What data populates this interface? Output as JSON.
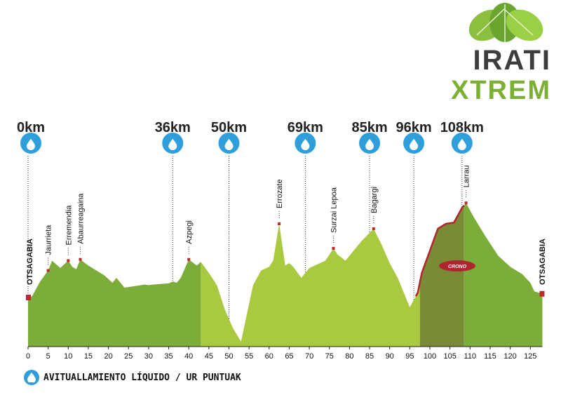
{
  "logo": {
    "line1": "IRATI",
    "line2": "XTREM"
  },
  "chart_data": {
    "type": "area",
    "title": "",
    "xlabel": "",
    "ylabel": "",
    "xlim": [
      0,
      128
    ],
    "xticks": [
      0,
      5,
      10,
      15,
      20,
      25,
      30,
      35,
      40,
      45,
      50,
      55,
      60,
      65,
      70,
      75,
      80,
      85,
      90,
      95,
      100,
      105,
      110,
      115,
      120,
      125
    ],
    "profile_x": [
      0,
      1,
      3,
      5,
      6,
      8,
      10,
      11,
      12,
      13,
      15,
      17,
      19,
      21,
      22,
      24,
      26,
      28,
      29,
      30,
      31,
      33,
      35,
      36,
      37,
      38,
      40,
      42,
      43,
      45,
      47,
      49,
      51,
      53,
      56,
      58,
      60,
      61,
      62.5,
      64,
      65,
      66,
      68,
      70,
      72,
      74,
      76,
      77,
      79,
      81,
      83,
      86,
      88,
      90,
      92,
      95,
      97,
      98,
      102,
      104,
      106,
      108,
      109,
      111,
      114,
      117,
      120,
      123,
      125,
      126,
      128
    ],
    "profile_y": [
      400,
      410,
      530,
      620,
      700,
      640,
      700,
      650,
      630,
      710,
      660,
      620,
      580,
      520,
      560,
      480,
      490,
      500,
      505,
      500,
      505,
      510,
      515,
      530,
      520,
      560,
      710,
      660,
      690,
      600,
      500,
      300,
      150,
      40,
      500,
      620,
      650,
      700,
      1000,
      660,
      680,
      650,
      560,
      640,
      670,
      700,
      800,
      750,
      700,
      780,
      860,
      960,
      830,
      680,
      560,
      320,
      440,
      600,
      960,
      1000,
      1010,
      1130,
      1170,
      1050,
      890,
      740,
      650,
      590,
      520,
      450,
      430
    ],
    "ruta_x_range": [
      97.5,
      108.5
    ],
    "waypoints": [
      {
        "name": "Jaurrieta",
        "km": 5
      },
      {
        "name": "Erremendia",
        "km": 10
      },
      {
        "name": "Abaurreagaina",
        "km": 13
      },
      {
        "name": "Azpegi",
        "km": 40
      },
      {
        "name": "Errozate",
        "km": 62.5
      },
      {
        "name": "Surzai Lepoa",
        "km": 76
      },
      {
        "name": "Bagargi",
        "km": 86
      },
      {
        "name": "Larrau",
        "km": 109
      }
    ],
    "water_points": [
      {
        "label": "0km",
        "km": 0
      },
      {
        "label": "36km",
        "km": 36
      },
      {
        "label": "50km",
        "km": 50
      },
      {
        "label": "69km",
        "km": 69
      },
      {
        "label": "85km",
        "km": 85
      },
      {
        "label": "96km",
        "km": 96
      },
      {
        "label": "108km",
        "km": 108
      }
    ],
    "start_label": "OTSAGABIA",
    "end_label": "OTSAGABIA",
    "section_logo_text": "CRONO",
    "legend": "AVITUALLAMIENTO LÍQUIDO / UR PUNTUAK",
    "colors": {
      "dark_green": "#7cad3b",
      "light_green": "#a9c940",
      "ruta": "#7a8a37",
      "route_line": "#b0262f",
      "water": "#2f9fdc",
      "marker": "#c1272d"
    }
  }
}
